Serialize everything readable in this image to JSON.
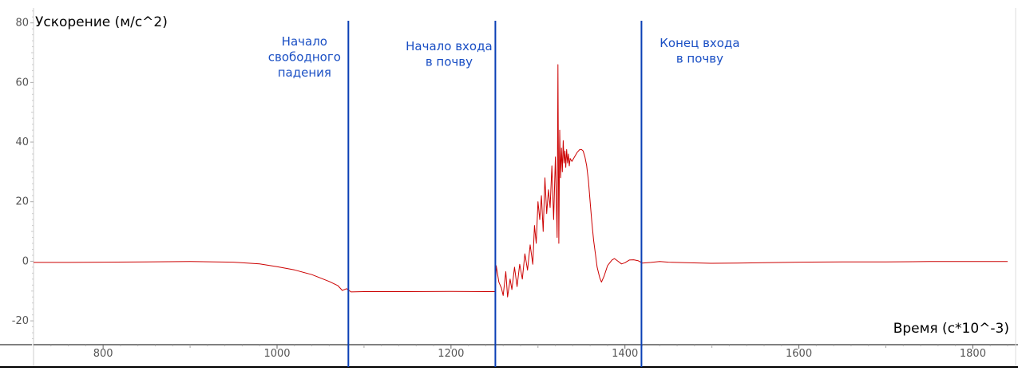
{
  "chart_data": {
    "type": "line",
    "title": "",
    "ylabel": "Ускорение (м/с^2)",
    "xlabel": "Время (с*10^-3)",
    "xlim": [
      720,
      1840
    ],
    "ylim": [
      -28,
      85
    ],
    "x_ticks": [
      800,
      1000,
      1200,
      1400,
      1600,
      1800
    ],
    "y_ticks": [
      -20,
      0,
      20,
      40,
      60,
      80
    ],
    "grid": false,
    "colors": {
      "series": "#cc0000",
      "markers": "#0a3fb5",
      "annotations": "#1a4fc4"
    },
    "series": [
      {
        "values": [
          [
            720,
            -0.4
          ],
          [
            760,
            -0.4
          ],
          [
            800,
            -0.3
          ],
          [
            850,
            -0.2
          ],
          [
            900,
            -0.1
          ],
          [
            950,
            -0.3
          ],
          [
            980,
            -0.9
          ],
          [
            1000,
            -1.8
          ],
          [
            1020,
            -2.9
          ],
          [
            1040,
            -4.5
          ],
          [
            1060,
            -6.8
          ],
          [
            1070,
            -8.2
          ],
          [
            1075,
            -9.8
          ],
          [
            1080,
            -9.2
          ],
          [
            1085,
            -10.3
          ],
          [
            1100,
            -10.2
          ],
          [
            1150,
            -10.2
          ],
          [
            1200,
            -10.1
          ],
          [
            1240,
            -10.2
          ],
          [
            1251,
            -10.2
          ],
          [
            1252,
            -1.5
          ],
          [
            1255,
            -7
          ],
          [
            1258,
            -9
          ],
          [
            1260,
            -11.5
          ],
          [
            1263,
            -3.5
          ],
          [
            1265,
            -12
          ],
          [
            1268,
            -6
          ],
          [
            1270,
            -9.5
          ],
          [
            1273,
            -2
          ],
          [
            1276,
            -8.5
          ],
          [
            1279,
            -1
          ],
          [
            1282,
            -6
          ],
          [
            1285,
            2.5
          ],
          [
            1288,
            -3
          ],
          [
            1291,
            5.5
          ],
          [
            1294,
            -1
          ],
          [
            1296,
            12
          ],
          [
            1298,
            6
          ],
          [
            1300,
            20
          ],
          [
            1302,
            14
          ],
          [
            1304,
            22
          ],
          [
            1306,
            10
          ],
          [
            1308,
            28
          ],
          [
            1310,
            16
          ],
          [
            1312,
            24
          ],
          [
            1314,
            18
          ],
          [
            1316,
            32
          ],
          [
            1318,
            14
          ],
          [
            1320,
            35
          ],
          [
            1322,
            8
          ],
          [
            1323,
            66
          ],
          [
            1324,
            6
          ],
          [
            1325,
            44
          ],
          [
            1326,
            28
          ],
          [
            1327,
            38
          ],
          [
            1328,
            30
          ],
          [
            1329,
            40.5
          ],
          [
            1330,
            33
          ],
          [
            1331,
            37
          ],
          [
            1332,
            31.5
          ],
          [
            1333,
            37.5
          ],
          [
            1334,
            33
          ],
          [
            1335,
            36
          ],
          [
            1336,
            32
          ],
          [
            1337,
            34.5
          ],
          [
            1339,
            33.5
          ],
          [
            1342,
            35
          ],
          [
            1345,
            36.5
          ],
          [
            1348,
            37.5
          ],
          [
            1350,
            37.5
          ],
          [
            1352,
            37
          ],
          [
            1354,
            35
          ],
          [
            1356,
            32
          ],
          [
            1358,
            27
          ],
          [
            1360,
            20
          ],
          [
            1362,
            13
          ],
          [
            1364,
            7
          ],
          [
            1366,
            2.5
          ],
          [
            1368,
            -2
          ],
          [
            1371,
            -5.5
          ],
          [
            1373,
            -7
          ],
          [
            1376,
            -5
          ],
          [
            1380,
            -1.5
          ],
          [
            1385,
            0.4
          ],
          [
            1388,
            0.9
          ],
          [
            1392,
            0
          ],
          [
            1396,
            -0.9
          ],
          [
            1400,
            -0.5
          ],
          [
            1405,
            0.4
          ],
          [
            1410,
            0.5
          ],
          [
            1415,
            0.2
          ],
          [
            1420,
            -0.6
          ],
          [
            1430,
            -0.4
          ],
          [
            1440,
            -0.1
          ],
          [
            1450,
            -0.3
          ],
          [
            1470,
            -0.5
          ],
          [
            1500,
            -0.7
          ],
          [
            1530,
            -0.6
          ],
          [
            1560,
            -0.5
          ],
          [
            1600,
            -0.3
          ],
          [
            1650,
            -0.2
          ],
          [
            1700,
            -0.2
          ],
          [
            1750,
            -0.1
          ],
          [
            1800,
            -0.1
          ],
          [
            1840,
            -0.1
          ]
        ]
      }
    ],
    "markers": [
      {
        "x": 1082,
        "label": [
          "Начало",
          "свободного",
          "падения"
        ]
      },
      {
        "x": 1251,
        "label": [
          "Начало входа",
          "в почву"
        ]
      },
      {
        "x": 1419,
        "label": [
          "Конец входа",
          "в почву"
        ]
      }
    ]
  }
}
